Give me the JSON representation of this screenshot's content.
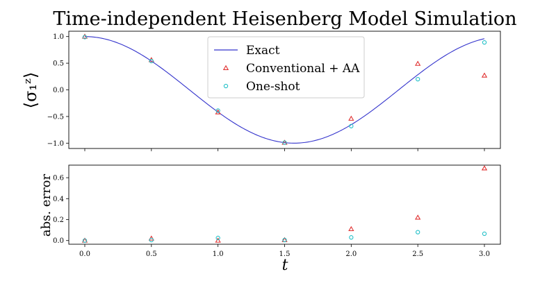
{
  "chart_data": [
    {
      "type": "line",
      "title": "Time-independent Heisenberg Model Simulation",
      "ylabel": "⟨σ₁ᶻ⟩",
      "xlabel": "",
      "xlim": [
        -0.12,
        3.12
      ],
      "ylim": [
        -1.1,
        1.1
      ],
      "x_ticks": [
        "0.0",
        "0.5",
        "1.0",
        "1.5",
        "2.0",
        "2.5",
        "3.0"
      ],
      "y_ticks": [
        "−1.0",
        "−0.5",
        "0.0",
        "0.5",
        "1.0"
      ],
      "legend_position": "top-center",
      "series": [
        {
          "name": "Exact",
          "kind": "line",
          "color": "#3333cc",
          "function": "cos(2t)",
          "x_range": [
            0.0,
            3.0
          ]
        },
        {
          "name": "Conventional + AA",
          "kind": "marker",
          "marker": "triangle",
          "color": "#e03030",
          "x": [
            0.0,
            0.5,
            1.0,
            1.5,
            2.0,
            2.5,
            3.0
          ],
          "y": [
            1.0,
            0.56,
            -0.42,
            -0.99,
            -0.54,
            0.49,
            0.27
          ]
        },
        {
          "name": "One-shot",
          "kind": "marker",
          "marker": "circle",
          "color": "#22c0c8",
          "x": [
            0.0,
            0.5,
            1.0,
            1.5,
            2.0,
            2.5,
            3.0
          ],
          "y": [
            0.99,
            0.54,
            -0.39,
            -0.99,
            -0.68,
            0.2,
            0.89
          ]
        }
      ]
    },
    {
      "type": "scatter",
      "title": "",
      "ylabel": "abs. error",
      "xlabel": "t",
      "xlim": [
        -0.12,
        3.12
      ],
      "ylim": [
        -0.035,
        0.72
      ],
      "x_ticks": [
        "0.0",
        "0.5",
        "1.0",
        "1.5",
        "2.0",
        "2.5",
        "3.0"
      ],
      "y_ticks": [
        "0.0",
        "0.2",
        "0.4",
        "0.6"
      ],
      "series": [
        {
          "name": "Conventional + AA",
          "marker": "triangle",
          "color": "#e03030",
          "x": [
            0.0,
            0.5,
            1.0,
            1.5,
            2.0,
            2.5,
            3.0
          ],
          "y": [
            0.0,
            0.02,
            0.0,
            0.005,
            0.11,
            0.22,
            0.69
          ]
        },
        {
          "name": "One-shot",
          "marker": "circle",
          "color": "#22c0c8",
          "x": [
            0.0,
            0.5,
            1.0,
            1.5,
            2.0,
            2.5,
            3.0
          ],
          "y": [
            0.0,
            0.005,
            0.025,
            0.005,
            0.03,
            0.08,
            0.065
          ]
        }
      ]
    }
  ]
}
